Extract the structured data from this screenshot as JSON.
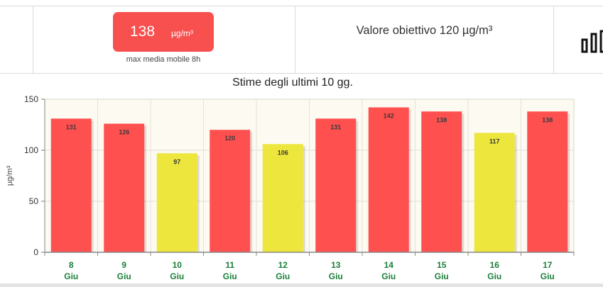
{
  "summary": {
    "value": "138",
    "unit": "µg/m³",
    "caption": "max media mobile 8h",
    "target_label": "Valore obiettivo 120 µg/m³",
    "badge_color": "#f84f4f",
    "icon": "bar-chart-icon"
  },
  "colors": {
    "above_target": "#ff5050",
    "below_target": "#ede63c",
    "plot_background": "#fdfaf2",
    "axis_label_green": "#1b7f3a"
  },
  "chart_data": {
    "type": "bar",
    "title": "Stime degli ultimi 10 gg.",
    "ylabel": "µg/m³",
    "ylim": [
      0,
      150
    ],
    "yticks": [
      0,
      50,
      100,
      150
    ],
    "grid": true,
    "categories": [
      {
        "day": "8",
        "month": "Giu"
      },
      {
        "day": "9",
        "month": "Giu"
      },
      {
        "day": "10",
        "month": "Giu"
      },
      {
        "day": "11",
        "month": "Giu"
      },
      {
        "day": "12",
        "month": "Giu"
      },
      {
        "day": "13",
        "month": "Giu"
      },
      {
        "day": "14",
        "month": "Giu"
      },
      {
        "day": "15",
        "month": "Giu"
      },
      {
        "day": "16",
        "month": "Giu"
      },
      {
        "day": "17",
        "month": "Giu"
      }
    ],
    "values": [
      131,
      126,
      97,
      120,
      106,
      131,
      142,
      138,
      117,
      138
    ],
    "data_labels": [
      "131",
      "126",
      "97",
      "120",
      "106",
      "131",
      "142",
      "138",
      "117",
      "138"
    ],
    "bar_colors": [
      "#ff5050",
      "#ff5050",
      "#ede63c",
      "#ff5050",
      "#ede63c",
      "#ff5050",
      "#ff5050",
      "#ff5050",
      "#ede63c",
      "#ff5050"
    ]
  }
}
